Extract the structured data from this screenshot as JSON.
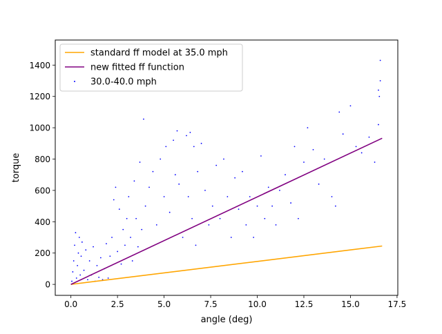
{
  "chart_data": {
    "type": "scatter",
    "title": "",
    "xlabel": "angle (deg)",
    "ylabel": "torque",
    "xlim": [
      -0.84,
      17.54
    ],
    "ylim": [
      -70,
      1560
    ],
    "xticks": [
      0.0,
      2.5,
      5.0,
      7.5,
      10.0,
      12.5,
      15.0,
      17.5
    ],
    "xtick_labels": [
      "0.0",
      "2.5",
      "5.0",
      "7.5",
      "10.0",
      "12.5",
      "15.0",
      "17.5"
    ],
    "yticks": [
      0,
      200,
      400,
      600,
      800,
      1000,
      1200,
      1400
    ],
    "ytick_labels": [
      "0",
      "200",
      "400",
      "600",
      "800",
      "1000",
      "1200",
      "1400"
    ],
    "grid": false,
    "legend_position": "upper-left",
    "series": [
      {
        "name": "standard ff model at 35.0 mph",
        "kind": "line",
        "color": "#ffa500",
        "x": [
          0.0,
          16.7
        ],
        "y": [
          0,
          245
        ]
      },
      {
        "name": "new fitted ff function",
        "kind": "line",
        "color": "#800080",
        "x": [
          0.0,
          16.7
        ],
        "y": [
          0,
          933
        ]
      },
      {
        "name": "30.0-40.0 mph",
        "kind": "scatter",
        "color": "#0000ff",
        "points": [
          [
            0.05,
            20
          ],
          [
            0.1,
            80
          ],
          [
            0.15,
            150
          ],
          [
            0.2,
            250
          ],
          [
            0.25,
            330
          ],
          [
            0.3,
            40
          ],
          [
            0.35,
            120
          ],
          [
            0.4,
            200
          ],
          [
            0.45,
            300
          ],
          [
            0.5,
            60
          ],
          [
            0.55,
            180
          ],
          [
            0.6,
            270
          ],
          [
            0.7,
            90
          ],
          [
            0.8,
            220
          ],
          [
            0.9,
            30
          ],
          [
            1.0,
            150
          ],
          [
            1.1,
            60
          ],
          [
            1.2,
            240
          ],
          [
            1.3,
            20
          ],
          [
            1.4,
            120
          ],
          [
            1.5,
            45
          ],
          [
            1.6,
            170
          ],
          [
            1.7,
            30
          ],
          [
            1.8,
            100
          ],
          [
            1.9,
            260
          ],
          [
            2.0,
            40
          ],
          [
            2.1,
            180
          ],
          [
            2.2,
            300
          ],
          [
            2.3,
            540
          ],
          [
            2.4,
            620
          ],
          [
            2.5,
            210
          ],
          [
            2.6,
            480
          ],
          [
            2.7,
            130
          ],
          [
            2.8,
            350
          ],
          [
            2.9,
            250
          ],
          [
            3.0,
            420
          ],
          [
            3.1,
            560
          ],
          [
            3.2,
            300
          ],
          [
            3.3,
            150
          ],
          [
            3.4,
            660
          ],
          [
            3.5,
            420
          ],
          [
            3.6,
            240
          ],
          [
            3.7,
            780
          ],
          [
            3.8,
            350
          ],
          [
            3.9,
            1055
          ],
          [
            4.0,
            500
          ],
          [
            4.2,
            620
          ],
          [
            4.4,
            720
          ],
          [
            4.6,
            380
          ],
          [
            4.8,
            800
          ],
          [
            5.0,
            560
          ],
          [
            5.1,
            880
          ],
          [
            5.3,
            460
          ],
          [
            5.5,
            920
          ],
          [
            5.6,
            700
          ],
          [
            5.7,
            980
          ],
          [
            5.8,
            640
          ],
          [
            6.0,
            300
          ],
          [
            6.2,
            950
          ],
          [
            6.3,
            560
          ],
          [
            6.4,
            970
          ],
          [
            6.5,
            420
          ],
          [
            6.6,
            880
          ],
          [
            6.7,
            250
          ],
          [
            6.8,
            720
          ],
          [
            7.0,
            900
          ],
          [
            7.2,
            600
          ],
          [
            7.4,
            380
          ],
          [
            7.6,
            500
          ],
          [
            7.8,
            760
          ],
          [
            8.0,
            420
          ],
          [
            8.2,
            800
          ],
          [
            8.4,
            560
          ],
          [
            8.6,
            300
          ],
          [
            8.8,
            680
          ],
          [
            9.0,
            480
          ],
          [
            9.2,
            720
          ],
          [
            9.4,
            380
          ],
          [
            9.6,
            560
          ],
          [
            9.8,
            300
          ],
          [
            10.0,
            500
          ],
          [
            10.2,
            820
          ],
          [
            10.4,
            420
          ],
          [
            10.6,
            620
          ],
          [
            10.8,
            500
          ],
          [
            11.0,
            380
          ],
          [
            11.2,
            600
          ],
          [
            11.5,
            700
          ],
          [
            11.8,
            520
          ],
          [
            12.0,
            880
          ],
          [
            12.2,
            420
          ],
          [
            12.5,
            780
          ],
          [
            12.7,
            1000
          ],
          [
            13.0,
            860
          ],
          [
            13.3,
            640
          ],
          [
            13.6,
            800
          ],
          [
            14.0,
            560
          ],
          [
            14.2,
            500
          ],
          [
            14.4,
            1100
          ],
          [
            14.6,
            960
          ],
          [
            15.0,
            1140
          ],
          [
            15.3,
            880
          ],
          [
            15.6,
            840
          ],
          [
            16.0,
            940
          ],
          [
            16.3,
            780
          ],
          [
            16.5,
            1240
          ],
          [
            16.55,
            1200
          ],
          [
            16.6,
            1300
          ],
          [
            16.6,
            1430
          ],
          [
            16.5,
            1020
          ]
        ]
      }
    ]
  }
}
